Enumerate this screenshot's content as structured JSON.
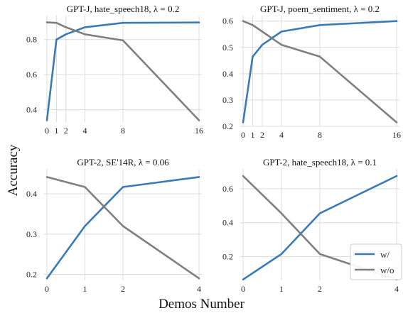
{
  "figure": {
    "ylabel": "Accuracy",
    "xlabel": "Demos Number"
  },
  "chart_data": [
    {
      "type": "line",
      "title": "GPT-J, hate_speech18, λ = 0.2",
      "x": [
        0,
        1,
        2,
        4,
        8,
        16
      ],
      "x_ticks": [
        "0",
        "1",
        "2",
        "4",
        "8",
        "16"
      ],
      "y_ticks": [
        "0.4",
        "0.6",
        "0.8"
      ],
      "ylim": [
        0.33,
        0.92
      ],
      "grid": true,
      "series": [
        {
          "name": "w/",
          "color": "#3b7ab5",
          "values": [
            0.34,
            0.8,
            0.83,
            0.87,
            0.895,
            0.897
          ]
        },
        {
          "name": "w/o",
          "color": "#7f7f7f",
          "values": [
            0.898,
            0.895,
            0.87,
            0.83,
            0.795,
            0.34
          ]
        }
      ]
    },
    {
      "type": "line",
      "title": "GPT-J, poem_sentiment, λ = 0.2",
      "x": [
        0,
        1,
        2,
        4,
        8,
        16
      ],
      "x_ticks": [
        "0",
        "1",
        "2",
        "4",
        "8",
        "16"
      ],
      "y_ticks": [
        "0.2",
        "0.3",
        "0.4",
        "0.5",
        "0.6"
      ],
      "ylim": [
        0.2,
        0.61
      ],
      "grid": true,
      "series": [
        {
          "name": "w/",
          "color": "#3b7ab5",
          "values": [
            0.215,
            0.465,
            0.51,
            0.56,
            0.585,
            0.6
          ]
        },
        {
          "name": "w/o",
          "color": "#7f7f7f",
          "values": [
            0.6,
            0.585,
            0.56,
            0.51,
            0.465,
            0.215
          ]
        }
      ]
    },
    {
      "type": "line",
      "title": "GPT-2, SE'14R, λ = 0.06",
      "x": [
        0,
        1,
        2,
        4
      ],
      "x_ticks": [
        "0",
        "1",
        "2",
        "4"
      ],
      "y_ticks": [
        "0.2",
        "0.3",
        "0.4"
      ],
      "ylim": [
        0.185,
        0.455
      ],
      "grid": true,
      "series": [
        {
          "name": "w/",
          "color": "#3b7ab5",
          "values": [
            0.19,
            0.32,
            0.417,
            0.442
          ]
        },
        {
          "name": "w/o",
          "color": "#7f7f7f",
          "values": [
            0.442,
            0.417,
            0.32,
            0.19
          ]
        }
      ]
    },
    {
      "type": "line",
      "title": "GPT-2, hate_speech18, λ = 0.1",
      "x": [
        0,
        1,
        2,
        4
      ],
      "x_ticks": [
        "0",
        "1",
        "2",
        "4"
      ],
      "y_ticks": [
        "0.2",
        "0.4",
        "0.6"
      ],
      "ylim": [
        0.06,
        0.7
      ],
      "grid": true,
      "legend": {
        "placement": "lower-right",
        "entries": [
          {
            "label": "w/",
            "color": "#3b7ab5"
          },
          {
            "label": "w/o",
            "color": "#7f7f7f"
          }
        ]
      },
      "series": [
        {
          "name": "w/",
          "color": "#3b7ab5",
          "values": [
            0.065,
            0.215,
            0.455,
            0.675
          ]
        },
        {
          "name": "w/o",
          "color": "#7f7f7f",
          "values": [
            0.675,
            0.455,
            0.215,
            0.065
          ]
        }
      ]
    }
  ]
}
